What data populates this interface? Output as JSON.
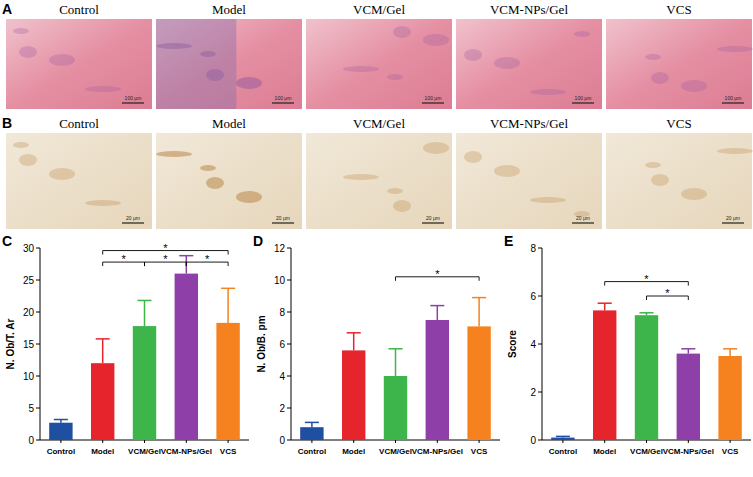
{
  "figure": {
    "image_panels": [
      {
        "letter": "A",
        "labels": [
          "Control",
          "Model",
          "VCM/Gel",
          "VCM-NPs/Gel",
          "VCS"
        ],
        "scale_bar": "100 μm"
      },
      {
        "letter": "B",
        "labels": [
          "Control",
          "Model",
          "VCM/Gel",
          "VCM-NPs/Gel",
          "VCS"
        ],
        "scale_bar": "20 μm"
      }
    ]
  },
  "chart_data": [
    {
      "type": "bar",
      "panel_label": "C",
      "y_label": "N. Ob/T. Ar",
      "categories": [
        "Control",
        "Model",
        "VCM/Gel",
        "VCM-NPs/Gel",
        "VCS"
      ],
      "values": [
        2.7,
        12,
        17.8,
        26,
        18.3
      ],
      "errors": [
        0.5,
        3.8,
        4,
        2.8,
        5.4
      ],
      "colors": [
        "#1f4fa0",
        "#e5242b",
        "#3db54a",
        "#8e3fa8",
        "#f5821f"
      ],
      "ylim": [
        0,
        30
      ],
      "yticks": [
        0,
        5,
        10,
        15,
        20,
        25,
        30
      ],
      "grid": false,
      "significance": [
        {
          "from": "Model",
          "to": "VCS",
          "y": 29.6,
          "label": "*"
        },
        {
          "from": "Model",
          "to": "VCM/Gel",
          "y": 27.8,
          "label": "*"
        },
        {
          "from": "VCM/Gel",
          "to": "VCM-NPs/Gel",
          "y": 27.8,
          "label": "*"
        },
        {
          "from": "VCM-NPs/Gel",
          "to": "VCS",
          "y": 27.8,
          "label": "*"
        }
      ]
    },
    {
      "type": "bar",
      "panel_label": "D",
      "y_label": "N. Ob/B. pm",
      "categories": [
        "Control",
        "Model",
        "VCM/Gel",
        "VCM-NPs/Gel",
        "VCS"
      ],
      "values": [
        0.8,
        5.6,
        4.0,
        7.5,
        7.1
      ],
      "errors": [
        0.3,
        1.1,
        1.7,
        0.9,
        1.8
      ],
      "colors": [
        "#1f4fa0",
        "#e5242b",
        "#3db54a",
        "#8e3fa8",
        "#f5821f"
      ],
      "ylim": [
        0,
        12
      ],
      "yticks": [
        0,
        2,
        4,
        6,
        8,
        10,
        12
      ],
      "grid": false,
      "significance": [
        {
          "from": "VCM/Gel",
          "to": "VCS",
          "y": 10.2,
          "label": "*"
        }
      ]
    },
    {
      "type": "bar",
      "panel_label": "E",
      "y_label": "Score",
      "categories": [
        "Control",
        "Model",
        "VCM/Gel",
        "VCM-NPs/Gel",
        "VCS"
      ],
      "values": [
        0.1,
        5.4,
        5.2,
        3.6,
        3.5
      ],
      "errors": [
        0.05,
        0.3,
        0.1,
        0.2,
        0.3
      ],
      "colors": [
        "#1f4fa0",
        "#e5242b",
        "#3db54a",
        "#8e3fa8",
        "#f5821f"
      ],
      "ylim": [
        0,
        8
      ],
      "yticks": [
        0,
        2,
        4,
        6,
        8
      ],
      "grid": false,
      "significance": [
        {
          "from": "Model",
          "to": "VCM-NPs/Gel",
          "y": 6.6,
          "label": "*"
        },
        {
          "from": "VCM/Gel",
          "to": "VCM-NPs/Gel",
          "y": 6.0,
          "label": "*"
        }
      ]
    }
  ]
}
